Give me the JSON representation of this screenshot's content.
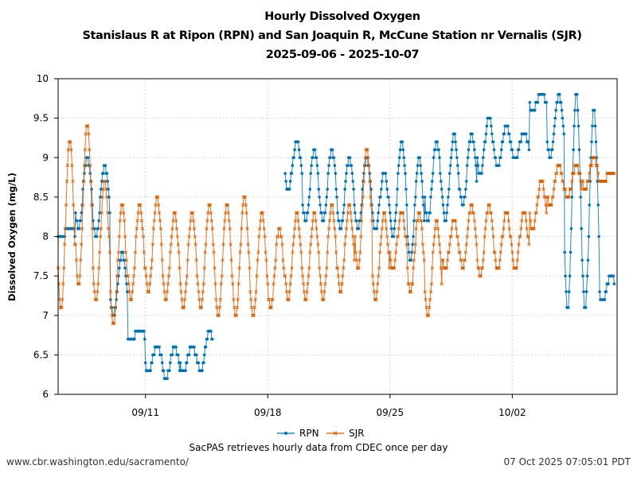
{
  "chart_data": {
    "type": "line",
    "title": "Hourly Dissolved Oxygen",
    "subtitle": "Stanislaus R at Ripon (RPN) and San Joaquin R, McCune Station nr Vernalis (SJR)",
    "date_range": "2025-09-06 - 2025-10-07",
    "xlabel": "",
    "ylabel": "Dissolved Oxygen (mg/L)",
    "ylim": [
      6,
      10
    ],
    "yticks": [
      "6",
      "6.5",
      "7",
      "7.5",
      "8",
      "8.5",
      "9",
      "9.5",
      "10"
    ],
    "xlim": [
      "2025-09-06",
      "2025-10-08"
    ],
    "xticks": [
      {
        "date": "2025-09-11",
        "label": "09/11"
      },
      {
        "date": "2025-09-18",
        "label": "09/18"
      },
      {
        "date": "2025-09-25",
        "label": "09/25"
      },
      {
        "date": "2025-10-02",
        "label": "10/02"
      }
    ],
    "grid": true,
    "legend_position": "bottom-center",
    "sampling": "hourly; values listed as daily [date, trough, peak] pairs read from the plot",
    "series": [
      {
        "name": "RPN",
        "color": "#0072b2",
        "marker": "dot",
        "daily": [
          [
            "2025-09-06",
            8.0,
            8.1
          ],
          [
            "2025-09-07",
            8.1,
            9.0
          ],
          [
            "2025-09-08",
            8.0,
            8.9
          ],
          [
            "2025-09-09",
            7.0,
            7.8
          ],
          [
            "2025-09-10",
            6.7,
            6.8
          ],
          [
            "2025-09-11",
            6.3,
            6.6
          ],
          [
            "2025-09-12",
            6.2,
            6.6
          ],
          [
            "2025-09-13",
            6.3,
            6.6
          ],
          [
            "2025-09-14",
            6.3,
            6.8
          ],
          [
            "2025-09-19",
            8.6,
            9.2
          ],
          [
            "2025-09-20",
            8.2,
            9.1
          ],
          [
            "2025-09-21",
            8.2,
            9.1
          ],
          [
            "2025-09-22",
            8.1,
            9.0
          ],
          [
            "2025-09-23",
            8.1,
            9.0
          ],
          [
            "2025-09-24",
            8.1,
            8.8
          ],
          [
            "2025-09-25",
            8.0,
            9.2
          ],
          [
            "2025-09-26",
            7.7,
            9.0
          ],
          [
            "2025-09-27",
            8.2,
            9.2
          ],
          [
            "2025-09-28",
            8.2,
            9.3
          ],
          [
            "2025-09-29",
            8.4,
            9.3
          ],
          [
            "2025-09-30",
            8.8,
            9.5
          ],
          [
            "2025-10-01",
            8.9,
            9.4
          ],
          [
            "2025-10-02",
            9.0,
            9.3
          ],
          [
            "2025-10-03",
            9.6,
            9.8
          ],
          [
            "2025-10-04",
            9.0,
            9.8
          ],
          [
            "2025-10-05",
            7.1,
            9.8
          ],
          [
            "2025-10-06",
            7.1,
            9.6
          ],
          [
            "2025-10-07",
            7.2,
            7.5
          ]
        ]
      },
      {
        "name": "SJR",
        "color": "#d55e00",
        "marker": "x",
        "daily": [
          [
            "2025-09-06",
            7.1,
            9.2
          ],
          [
            "2025-09-07",
            7.4,
            9.4
          ],
          [
            "2025-09-08",
            7.2,
            8.7
          ],
          [
            "2025-09-09",
            6.9,
            8.4
          ],
          [
            "2025-09-10",
            7.2,
            8.4
          ],
          [
            "2025-09-11",
            7.3,
            8.5
          ],
          [
            "2025-09-12",
            7.2,
            8.3
          ],
          [
            "2025-09-13",
            7.1,
            8.3
          ],
          [
            "2025-09-14",
            7.1,
            8.4
          ],
          [
            "2025-09-15",
            7.0,
            8.4
          ],
          [
            "2025-09-16",
            7.0,
            8.5
          ],
          [
            "2025-09-17",
            7.0,
            8.3
          ],
          [
            "2025-09-18",
            7.1,
            8.1
          ],
          [
            "2025-09-19",
            7.2,
            8.3
          ],
          [
            "2025-09-20",
            7.2,
            8.3
          ],
          [
            "2025-09-21",
            7.2,
            8.4
          ],
          [
            "2025-09-22",
            7.3,
            8.4
          ],
          [
            "2025-09-23",
            7.6,
            9.1
          ],
          [
            "2025-09-24",
            7.2,
            8.3
          ],
          [
            "2025-09-25",
            7.6,
            8.3
          ],
          [
            "2025-09-26",
            7.3,
            8.3
          ],
          [
            "2025-09-27",
            7.0,
            8.2
          ],
          [
            "2025-09-28",
            7.6,
            8.2
          ],
          [
            "2025-09-29",
            7.6,
            8.4
          ],
          [
            "2025-09-30",
            7.5,
            8.4
          ],
          [
            "2025-10-01",
            7.6,
            8.3
          ],
          [
            "2025-10-02",
            7.6,
            8.3
          ],
          [
            "2025-10-03",
            8.1,
            8.7
          ],
          [
            "2025-10-04",
            8.4,
            8.9
          ],
          [
            "2025-10-05",
            8.5,
            8.9
          ],
          [
            "2025-10-06",
            8.6,
            9.0
          ],
          [
            "2025-10-07",
            8.7,
            8.8
          ]
        ]
      }
    ]
  },
  "footer": {
    "note": "SacPAS retrieves hourly data from CDEC once per day",
    "url": "www.cbr.washington.edu/sacramento/",
    "timestamp": "07 Oct 2025 07:05:01 PDT"
  }
}
